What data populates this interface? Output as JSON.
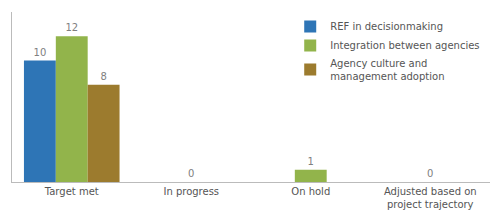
{
  "chart_data": {
    "type": "bar",
    "categories": [
      "Target met",
      "In progress",
      "On hold",
      "Adjusted based on\nproject trajectory"
    ],
    "series": [
      {
        "name": "REF in decisionmaking",
        "color": "#2e75b6",
        "values": [
          10,
          null,
          null,
          null
        ]
      },
      {
        "name": "Integration between agencies",
        "color": "#92b44b",
        "values": [
          12,
          0,
          1,
          0
        ]
      },
      {
        "name": "Agency culture and\nmanagement adoption",
        "color": "#9c7b2e",
        "values": [
          8,
          null,
          null,
          null
        ]
      }
    ],
    "ylim": [
      0,
      14
    ],
    "grid": false,
    "legend": "upper right",
    "data_labels": true,
    "tick_labels": "x"
  }
}
